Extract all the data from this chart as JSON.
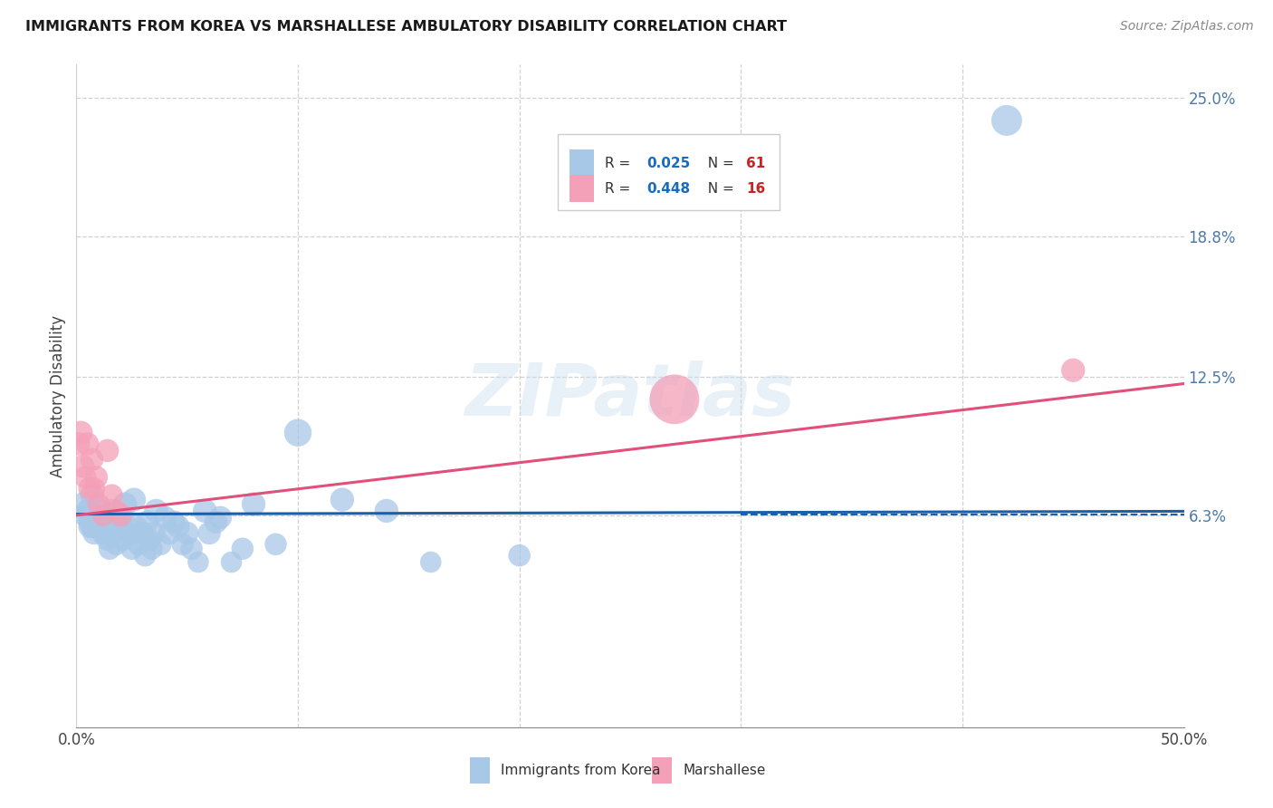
{
  "title": "IMMIGRANTS FROM KOREA VS MARSHALLESE AMBULATORY DISABILITY CORRELATION CHART",
  "source": "Source: ZipAtlas.com",
  "ylabel": "Ambulatory Disability",
  "xlim": [
    0.0,
    0.5
  ],
  "ylim": [
    -0.032,
    0.265
  ],
  "xticks": [
    0.0,
    0.1,
    0.2,
    0.3,
    0.4,
    0.5
  ],
  "xticklabels": [
    "0.0%",
    "",
    "",
    "",
    "",
    "50.0%"
  ],
  "ytick_positions": [
    0.063,
    0.125,
    0.188,
    0.25
  ],
  "ytick_labels": [
    "6.3%",
    "12.5%",
    "18.8%",
    "25.0%"
  ],
  "color_korea": "#a8c8e8",
  "color_korea_line": "#1a5fa8",
  "color_marshallese": "#f4a0b8",
  "color_marshallese_line": "#e0507a",
  "color_ytick": "#4d79a8",
  "korea_scatter_x": [
    0.003,
    0.004,
    0.005,
    0.006,
    0.006,
    0.007,
    0.007,
    0.008,
    0.008,
    0.009,
    0.01,
    0.01,
    0.011,
    0.012,
    0.013,
    0.014,
    0.015,
    0.015,
    0.016,
    0.017,
    0.018,
    0.019,
    0.02,
    0.021,
    0.022,
    0.023,
    0.024,
    0.025,
    0.026,
    0.027,
    0.028,
    0.03,
    0.031,
    0.032,
    0.033,
    0.034,
    0.035,
    0.036,
    0.038,
    0.04,
    0.042,
    0.044,
    0.046,
    0.048,
    0.05,
    0.052,
    0.055,
    0.058,
    0.06,
    0.063,
    0.065,
    0.07,
    0.075,
    0.08,
    0.09,
    0.1,
    0.12,
    0.14,
    0.16,
    0.2,
    0.42
  ],
  "korea_scatter_y": [
    0.068,
    0.063,
    0.065,
    0.06,
    0.058,
    0.072,
    0.058,
    0.063,
    0.055,
    0.06,
    0.065,
    0.058,
    0.062,
    0.055,
    0.058,
    0.052,
    0.06,
    0.048,
    0.065,
    0.055,
    0.05,
    0.063,
    0.06,
    0.052,
    0.068,
    0.058,
    0.055,
    0.048,
    0.07,
    0.058,
    0.05,
    0.055,
    0.045,
    0.06,
    0.052,
    0.048,
    0.055,
    0.065,
    0.05,
    0.062,
    0.055,
    0.06,
    0.058,
    0.05,
    0.055,
    0.048,
    0.042,
    0.065,
    0.055,
    0.06,
    0.062,
    0.042,
    0.048,
    0.068,
    0.05,
    0.1,
    0.07,
    0.065,
    0.042,
    0.045,
    0.24
  ],
  "korea_scatter_sizes": [
    30,
    28,
    28,
    28,
    28,
    30,
    28,
    30,
    28,
    28,
    30,
    28,
    28,
    28,
    28,
    26,
    28,
    26,
    30,
    28,
    26,
    28,
    28,
    26,
    30,
    28,
    26,
    26,
    30,
    28,
    26,
    28,
    26,
    28,
    26,
    26,
    28,
    30,
    26,
    28,
    28,
    28,
    28,
    26,
    28,
    26,
    24,
    30,
    28,
    28,
    28,
    24,
    26,
    30,
    26,
    40,
    30,
    30,
    24,
    26,
    50
  ],
  "marshallese_scatter_x": [
    0.001,
    0.002,
    0.003,
    0.004,
    0.005,
    0.006,
    0.007,
    0.008,
    0.009,
    0.01,
    0.012,
    0.014,
    0.016,
    0.018,
    0.02,
    0.27,
    0.45
  ],
  "marshallese_scatter_y": [
    0.095,
    0.1,
    0.085,
    0.08,
    0.095,
    0.075,
    0.088,
    0.075,
    0.08,
    0.068,
    0.063,
    0.092,
    0.072,
    0.065,
    0.063,
    0.115,
    0.128
  ],
  "marshallese_scatter_sizes": [
    28,
    30,
    28,
    26,
    28,
    28,
    28,
    26,
    28,
    26,
    26,
    28,
    26,
    26,
    28,
    130,
    30
  ],
  "korea_trend_x": [
    0.0,
    0.5
  ],
  "korea_trend_y": [
    0.0635,
    0.0648
  ],
  "marshallese_trend_x": [
    0.0,
    0.5
  ],
  "marshallese_trend_y": [
    0.063,
    0.122
  ],
  "dashed_line_y": 0.0635,
  "dashed_line_x_start": 0.3,
  "dashed_line_x_end": 0.5
}
